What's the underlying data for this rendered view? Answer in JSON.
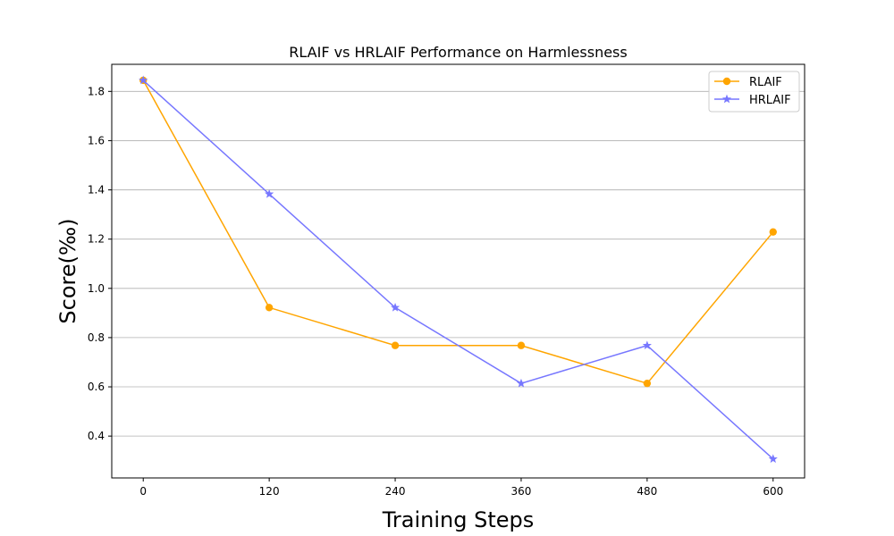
{
  "chart_data": {
    "type": "line",
    "title": "RLAIF vs HRLAIF Performance on Harmlessness",
    "xlabel": "Training Steps",
    "ylabel": "Score(‰)",
    "x": [
      0,
      120,
      240,
      360,
      480,
      600
    ],
    "x_tick_labels": [
      "0",
      "120",
      "240",
      "360",
      "480",
      "600"
    ],
    "y_ticks": [
      0.4,
      0.6,
      0.8,
      1.0,
      1.2,
      1.4,
      1.6,
      1.8
    ],
    "y_tick_labels": [
      "0.4",
      "0.6",
      "0.8",
      "1.0",
      "1.2",
      "1.4",
      "1.6",
      "1.8"
    ],
    "xlim": [
      -30,
      630
    ],
    "ylim": [
      0.23,
      1.91
    ],
    "grid": "horizontal",
    "legend_position": "top-right",
    "series": [
      {
        "name": "RLAIF",
        "color": "#ffa500",
        "marker": "circle",
        "values": [
          1.845,
          0.922,
          0.768,
          0.768,
          0.614,
          1.229
        ]
      },
      {
        "name": "HRLAIF",
        "color": "#7777ff",
        "marker": "star",
        "values": [
          1.845,
          1.383,
          0.922,
          0.614,
          0.768,
          0.307
        ]
      }
    ]
  }
}
